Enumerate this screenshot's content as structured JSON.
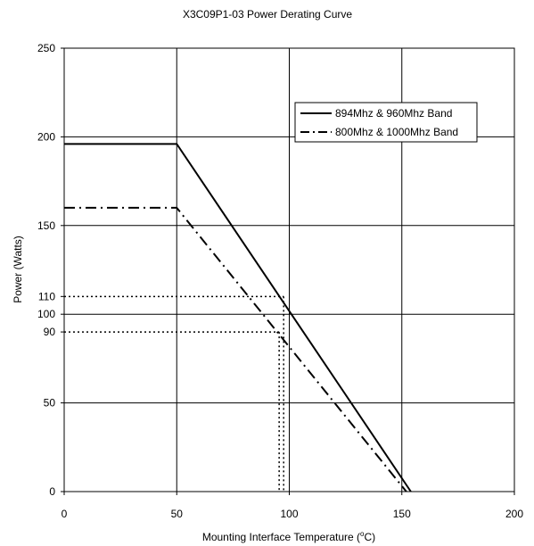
{
  "chart_data": {
    "type": "line",
    "title": "X3C09P1-03 Power Derating Curve",
    "xlabel": "Mounting Interface Temperature (°C)",
    "xlabel_main": "Mounting Interface Temperature (",
    "xlabel_sup": "o",
    "xlabel_end": "C)",
    "ylabel": "Power (Watts)",
    "xlim": [
      0,
      200
    ],
    "ylim": [
      0,
      250
    ],
    "xticks": [
      0,
      50,
      100,
      150,
      200
    ],
    "xtick_labels": [
      "0",
      "50",
      "100",
      "150",
      "200"
    ],
    "yticks": [
      0,
      50,
      90,
      100,
      110,
      150,
      200,
      250
    ],
    "ytick_labels": [
      "0",
      "50",
      "90",
      "100",
      "110",
      "150",
      "200",
      "250"
    ],
    "grid": true,
    "legend_position": "top-right",
    "series": [
      {
        "name": "894Mhz & 960Mhz Band",
        "line_style": "solid",
        "x": [
          0,
          50,
          154
        ],
        "y": [
          196,
          196,
          0
        ]
      },
      {
        "name": "800Mhz & 1000Mhz Band",
        "line_style": "dash-dot",
        "x": [
          0,
          50,
          152
        ],
        "y": [
          160,
          160,
          0
        ]
      }
    ],
    "annotations": [
      {
        "type": "reference-lines",
        "style": "dotted",
        "corner_x": 97.5,
        "corner_y": 110
      },
      {
        "type": "reference-lines",
        "style": "dotted",
        "corner_x": 95.5,
        "corner_y": 90
      }
    ]
  }
}
